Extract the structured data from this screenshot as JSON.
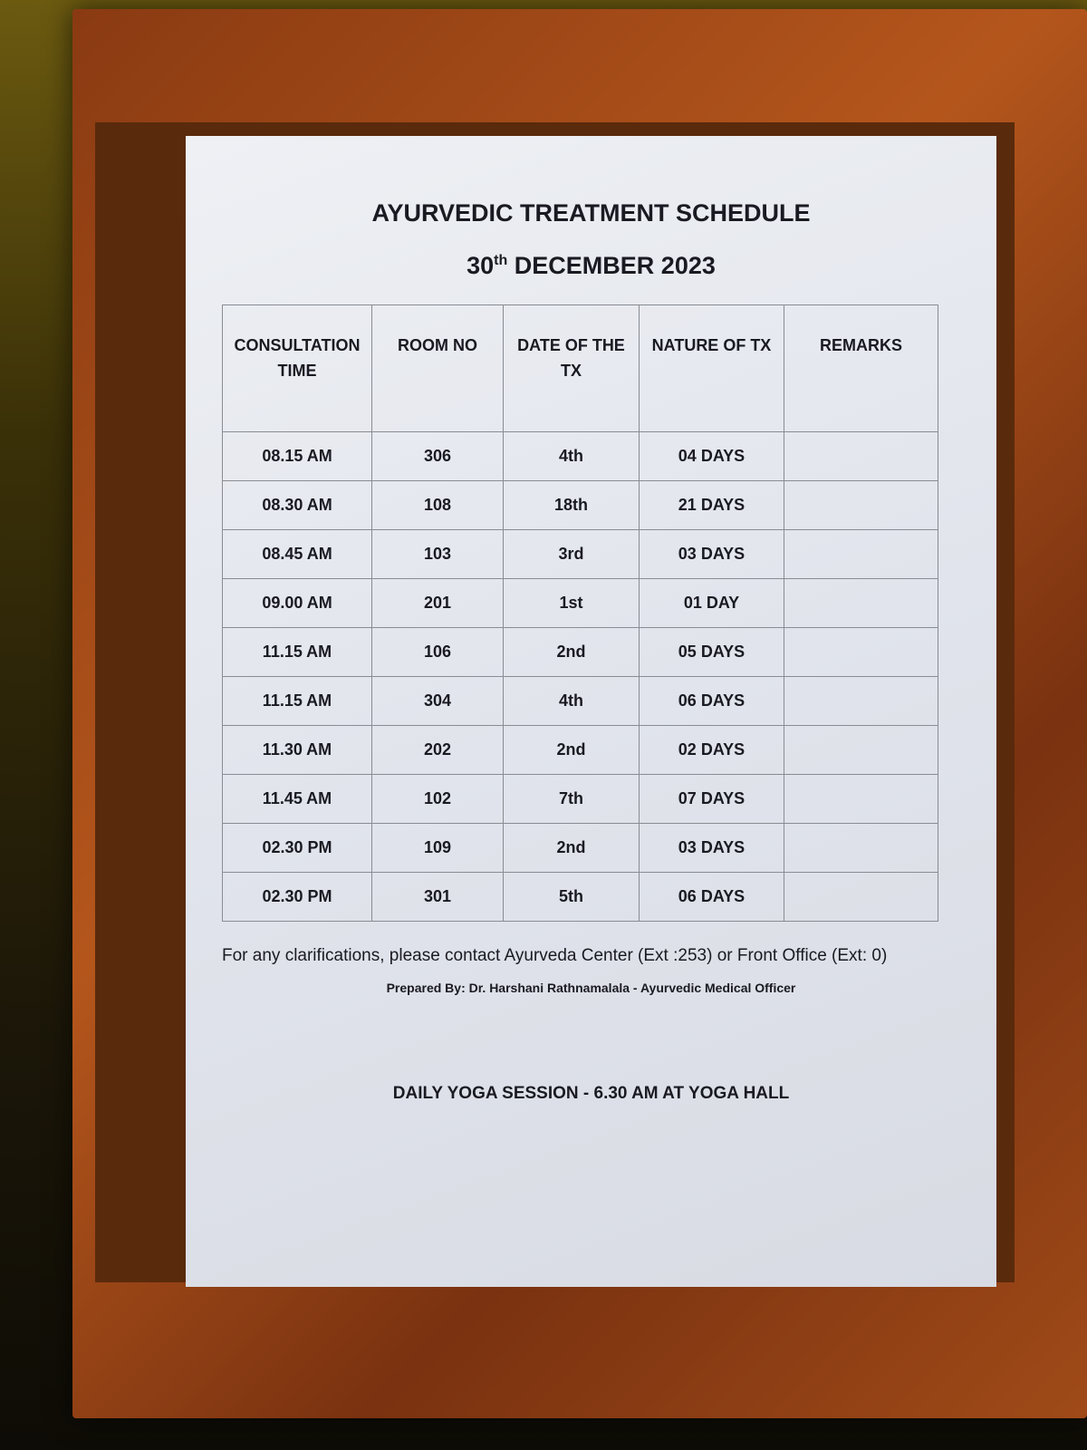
{
  "document": {
    "title": "AYURVEDIC TREATMENT SCHEDULE",
    "date_day": "30",
    "date_suffix": "th",
    "date_rest": "DECEMBER 2023",
    "headers": [
      "CONSULTATION TIME",
      "ROOM NO",
      "DATE OF THE TX",
      "NATURE OF TX",
      "REMARKS"
    ],
    "rows": [
      [
        "08.15 AM",
        "306",
        "4th",
        "04 DAYS",
        ""
      ],
      [
        "08.30 AM",
        "108",
        "18th",
        "21 DAYS",
        ""
      ],
      [
        "08.45 AM",
        "103",
        "3rd",
        "03 DAYS",
        ""
      ],
      [
        "09.00 AM",
        "201",
        "1st",
        "01 DAY",
        ""
      ],
      [
        "11.15 AM",
        "106",
        "2nd",
        "05 DAYS",
        ""
      ],
      [
        "11.15 AM",
        "304",
        "4th",
        "06 DAYS",
        ""
      ],
      [
        "11.30 AM",
        "202",
        "2nd",
        "02 DAYS",
        ""
      ],
      [
        "11.45 AM",
        "102",
        "7th",
        "07 DAYS",
        ""
      ],
      [
        "02.30 PM",
        "109",
        "2nd",
        "03 DAYS",
        ""
      ],
      [
        "02.30 PM",
        "301",
        "5th",
        "06 DAYS",
        ""
      ]
    ],
    "contact_note": "For any clarifications, please contact Ayurveda Center (Ext :253) or Front Office (Ext: 0)",
    "prepared_by": "Prepared By: Dr. Harshani Rathnamalala - Ayurvedic Medical Officer",
    "yoga": "DAILY YOGA SESSION - 6.30 AM AT YOGA HALL"
  }
}
